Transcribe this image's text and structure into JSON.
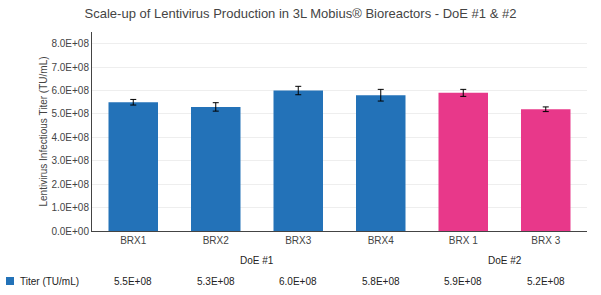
{
  "chart_data": {
    "type": "bar",
    "title": "Scale-up of Lentivirus Production in 3L Mobius® Bioreactors - DoE #1 & #2",
    "ylabel": "Lentivirus Infectious Titer (TU/mL)",
    "categories": [
      "BRX1",
      "BRX2",
      "BRX3",
      "BRX4",
      "BRX 1",
      "BRX 3"
    ],
    "series": [
      {
        "name": "Titer (TU/mL)",
        "color": "#2372b8",
        "colors": [
          "#2372b8",
          "#2372b8",
          "#2372b8",
          "#2372b8",
          "#e8388a",
          "#e8388a"
        ],
        "values": [
          550000000.0,
          530000000.0,
          600000000.0,
          580000000.0,
          590000000.0,
          520000000.0
        ],
        "errors": [
          12000000.0,
          18000000.0,
          18000000.0,
          25000000.0,
          15000000.0,
          10000000.0
        ],
        "value_labels": [
          "5.5E+08",
          "5.3E+08",
          "6.0E+08",
          "5.8E+08",
          "5.9E+08",
          "5.2E+08"
        ]
      }
    ],
    "data_labels": true,
    "annotations": [
      {
        "text": "DoE #1",
        "categories": [
          "BRX1",
          "BRX2",
          "BRX3",
          "BRX4"
        ]
      },
      {
        "text": "DoE #2",
        "categories": [
          "BRX 1",
          "BRX 3"
        ]
      }
    ],
    "ylim": [
      0,
      850000000.0
    ],
    "yticks": [
      {
        "value": 0,
        "label": "0.0E+00"
      },
      {
        "value": 100000000.0,
        "label": "1.0E+08"
      },
      {
        "value": 200000000.0,
        "label": "2.0E+08"
      },
      {
        "value": 300000000.0,
        "label": "3.0E+08"
      },
      {
        "value": 400000000.0,
        "label": "4.0E+08"
      },
      {
        "value": 500000000.0,
        "label": "5.0E+08"
      },
      {
        "value": 600000000.0,
        "label": "6.0E+08"
      },
      {
        "value": 700000000.0,
        "label": "7.0E+08"
      },
      {
        "value": 800000000.0,
        "label": "8.0E+08"
      }
    ],
    "grid": true
  }
}
